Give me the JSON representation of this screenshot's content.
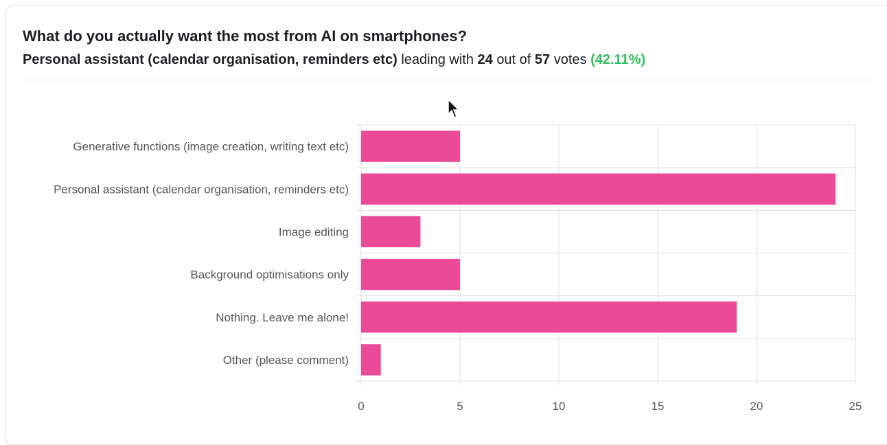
{
  "poll": {
    "question": "What do you actually want the most from AI on smartphones?",
    "leader": "Personal assistant (calendar organisation, reminders etc)",
    "leading_with_text": "leading with",
    "leader_votes": "24",
    "out_of_text": "out of",
    "total_votes": "57",
    "votes_text": "votes",
    "leader_percent": "(42.11%)"
  },
  "colors": {
    "bar": "#ea4a98",
    "grid": "#dedfe3",
    "label": "#555555",
    "accent_green": "#2fbf5c"
  },
  "cursor_icon": "mouse-pointer-icon",
  "chart_data": {
    "type": "bar",
    "orientation": "horizontal",
    "title": "",
    "xlabel": "",
    "ylabel": "",
    "categories": [
      "Generative functions (image creation, writing text etc)",
      "Personal assistant (calendar organisation, reminders etc)",
      "Image editing",
      "Background optimisations only",
      "Nothing. Leave me alone!",
      "Other (please comment)"
    ],
    "values": [
      5,
      24,
      3,
      5,
      19,
      1
    ],
    "xlim": [
      0,
      25
    ],
    "xticks": [
      "0",
      "5",
      "10",
      "15",
      "20",
      "25"
    ],
    "grid": true,
    "legend": "none"
  }
}
